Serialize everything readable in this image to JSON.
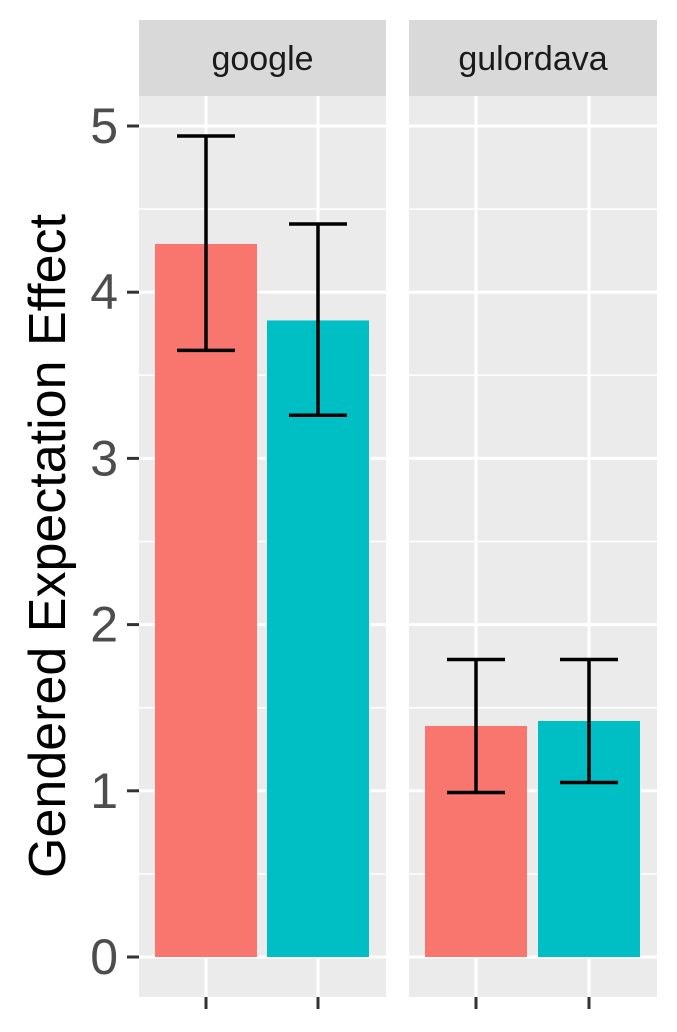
{
  "chart_data": {
    "type": "bar",
    "ylabel": "Gendered Expectation Effect",
    "ylim": [
      0,
      5.2
    ],
    "y_ticks": [
      0,
      1,
      2,
      3,
      4,
      5
    ],
    "y_tick_labels": [
      "0",
      "1",
      "2",
      "3",
      "4",
      "5"
    ],
    "grid": true,
    "legend": "none",
    "facets": [
      {
        "label": "google",
        "bars": [
          {
            "value": 4.29,
            "error_low": 3.65,
            "error_high": 4.94,
            "color": "#F8766D"
          },
          {
            "value": 3.83,
            "error_low": 3.26,
            "error_high": 4.41,
            "color": "#00BFC4"
          }
        ]
      },
      {
        "label": "gulordava",
        "bars": [
          {
            "value": 1.39,
            "error_low": 0.99,
            "error_high": 1.79,
            "color": "#F8766D"
          },
          {
            "value": 1.42,
            "error_low": 1.05,
            "error_high": 1.79,
            "color": "#00BFC4"
          }
        ]
      }
    ]
  },
  "colors": {
    "panel_background": "#EBEBEB",
    "strip_background": "#D9D9D9",
    "gridline": "#FFFFFF",
    "error_bar": "#000000",
    "tick_mark": "#333333"
  }
}
